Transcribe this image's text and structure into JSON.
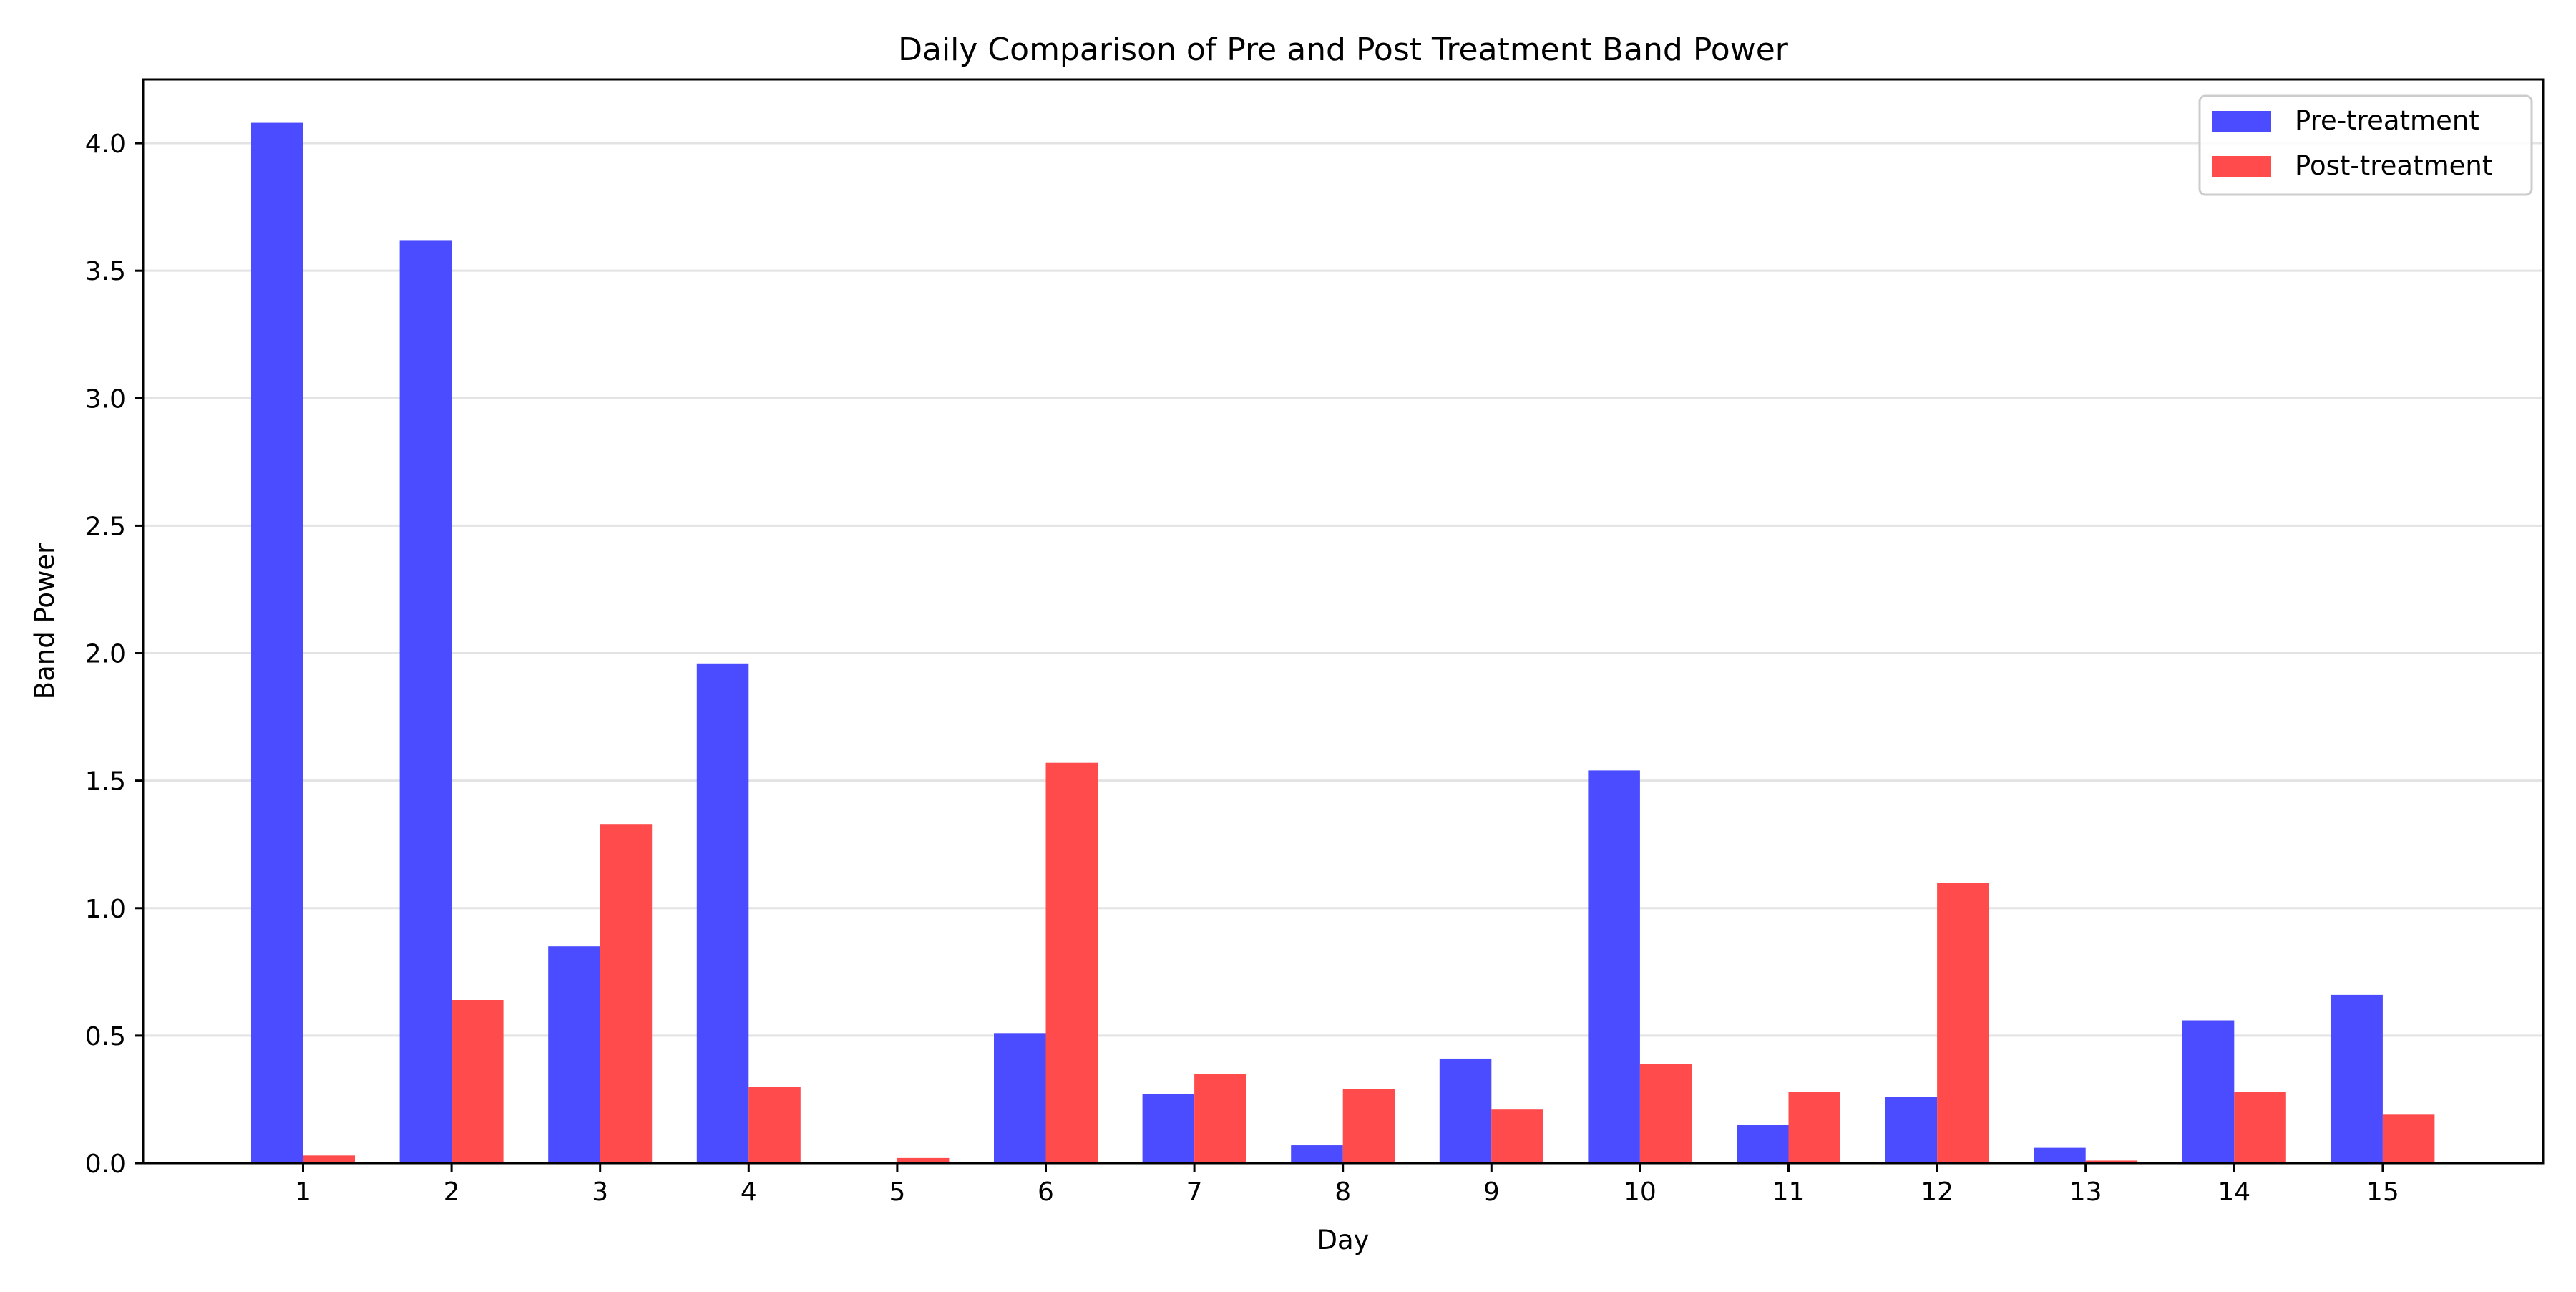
{
  "chart_data": {
    "type": "bar",
    "title": "Daily Comparison of Pre and Post Treatment Band Power",
    "xlabel": "Day",
    "ylabel": "Band Power",
    "categories": [
      "1",
      "2",
      "3",
      "4",
      "5",
      "6",
      "7",
      "8",
      "9",
      "10",
      "11",
      "12",
      "13",
      "14",
      "15"
    ],
    "ylim": [
      0,
      4.25
    ],
    "yticks": [
      "0.0",
      "0.5",
      "1.0",
      "1.5",
      "2.0",
      "2.5",
      "3.0",
      "3.5",
      "4.0"
    ],
    "grid": "horizontal",
    "legend_position": "top-right",
    "series": [
      {
        "name": "Pre-treatment",
        "color": "#4B4BFF",
        "values": [
          4.08,
          3.62,
          0.85,
          1.96,
          0.0,
          0.51,
          0.27,
          0.07,
          0.41,
          1.54,
          0.15,
          0.26,
          0.06,
          0.56,
          0.66
        ]
      },
      {
        "name": "Post-treatment",
        "color": "#FF4B4B",
        "values": [
          0.03,
          0.64,
          1.33,
          0.3,
          0.02,
          1.57,
          0.35,
          0.29,
          0.21,
          0.39,
          0.28,
          1.1,
          0.01,
          0.28,
          0.19
        ]
      }
    ]
  }
}
